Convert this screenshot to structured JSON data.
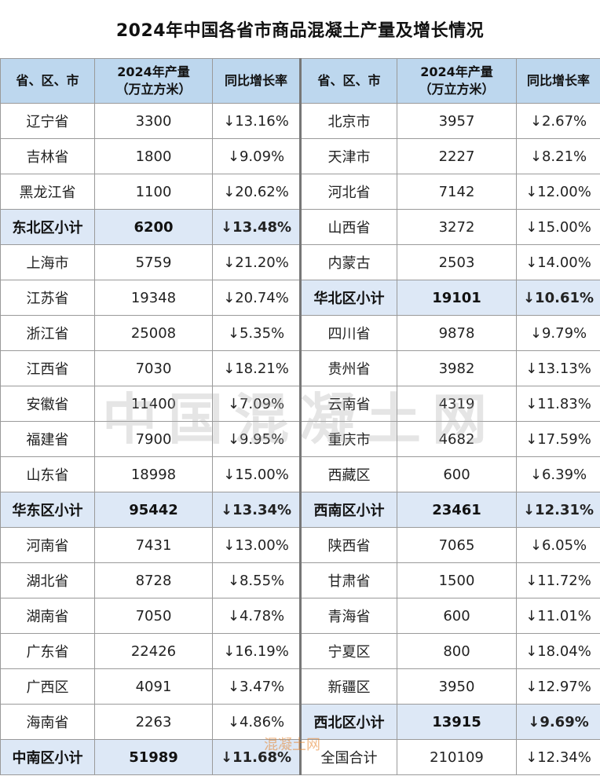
{
  "title": "2024年中国各省市商品混凝土产量及增长情况",
  "headers": {
    "region": "省、区、市",
    "output_line1": "2024年产量",
    "output_line2": "（万立方米）",
    "growth": "同比增长率"
  },
  "rows": [
    {
      "l": {
        "name": "辽宁省",
        "out": "3300",
        "rate": "↓13.16%"
      },
      "r": {
        "name": "北京市",
        "out": "3957",
        "rate": "↓2.67%"
      }
    },
    {
      "l": {
        "name": "吉林省",
        "out": "1800",
        "rate": "↓9.09%"
      },
      "r": {
        "name": "天津市",
        "out": "2227",
        "rate": "↓8.21%"
      }
    },
    {
      "l": {
        "name": "黑龙江省",
        "out": "1100",
        "rate": "↓20.62%"
      },
      "r": {
        "name": "河北省",
        "out": "7142",
        "rate": "↓12.00%"
      }
    },
    {
      "l": {
        "name": "东北区小计",
        "out": "6200",
        "rate": "↓13.48%"
      },
      "r": {
        "name": "山西省",
        "out": "3272",
        "rate": "↓15.00%"
      }
    },
    {
      "l": {
        "name": "上海市",
        "out": "5759",
        "rate": "↓21.20%"
      },
      "r": {
        "name": "内蒙古",
        "out": "2503",
        "rate": "↓14.00%"
      }
    },
    {
      "l": {
        "name": "江苏省",
        "out": "19348",
        "rate": "↓20.74%"
      },
      "r": {
        "name": "华北区小计",
        "out": "19101",
        "rate": "↓10.61%"
      }
    },
    {
      "l": {
        "name": "浙江省",
        "out": "25008",
        "rate": "↓5.35%"
      },
      "r": {
        "name": "四川省",
        "out": "9878",
        "rate": "↓9.79%"
      }
    },
    {
      "l": {
        "name": "江西省",
        "out": "7030",
        "rate": "↓18.21%"
      },
      "r": {
        "name": "贵州省",
        "out": "3982",
        "rate": "↓13.13%"
      }
    },
    {
      "l": {
        "name": "安徽省",
        "out": "11400",
        "rate": "↓7.09%"
      },
      "r": {
        "name": "云南省",
        "out": "4319",
        "rate": "↓11.83%"
      }
    },
    {
      "l": {
        "name": "福建省",
        "out": "7900",
        "rate": "↓9.95%"
      },
      "r": {
        "name": "重庆市",
        "out": "4682",
        "rate": "↓17.59%"
      }
    },
    {
      "l": {
        "name": "山东省",
        "out": "18998",
        "rate": "↓15.00%"
      },
      "r": {
        "name": "西藏区",
        "out": "600",
        "rate": "↓6.39%"
      }
    },
    {
      "l": {
        "name": "华东区小计",
        "out": "95442",
        "rate": "↓13.34%"
      },
      "r": {
        "name": "西南区小计",
        "out": "23461",
        "rate": "↓12.31%"
      }
    },
    {
      "l": {
        "name": "河南省",
        "out": "7431",
        "rate": "↓13.00%"
      },
      "r": {
        "name": "陕西省",
        "out": "7065",
        "rate": "↓6.05%"
      }
    },
    {
      "l": {
        "name": "湖北省",
        "out": "8728",
        "rate": "↓8.55%"
      },
      "r": {
        "name": "甘肃省",
        "out": "1500",
        "rate": "↓11.72%"
      }
    },
    {
      "l": {
        "name": "湖南省",
        "out": "7050",
        "rate": "↓4.78%"
      },
      "r": {
        "name": "青海省",
        "out": "600",
        "rate": "↓11.01%"
      }
    },
    {
      "l": {
        "name": "广东省",
        "out": "22426",
        "rate": "↓16.19%"
      },
      "r": {
        "name": "宁夏区",
        "out": "800",
        "rate": "↓18.04%"
      }
    },
    {
      "l": {
        "name": "广西区",
        "out": "4091",
        "rate": "↓3.47%"
      },
      "r": {
        "name": "新疆区",
        "out": "3950",
        "rate": "↓12.97%"
      }
    },
    {
      "l": {
        "name": "海南省",
        "out": "2263",
        "rate": "↓4.86%"
      },
      "r": {
        "name": "西北区小计",
        "out": "13915",
        "rate": "↓9.69%"
      }
    },
    {
      "l": {
        "name": "中南区小计",
        "out": "51989",
        "rate": "↓11.68%"
      },
      "r": {
        "name": "全国合计",
        "out": "210109",
        "rate": "↓12.34%"
      }
    }
  ],
  "watermark_text": "中国混凝土网",
  "watermark_small": "混凝土网"
}
